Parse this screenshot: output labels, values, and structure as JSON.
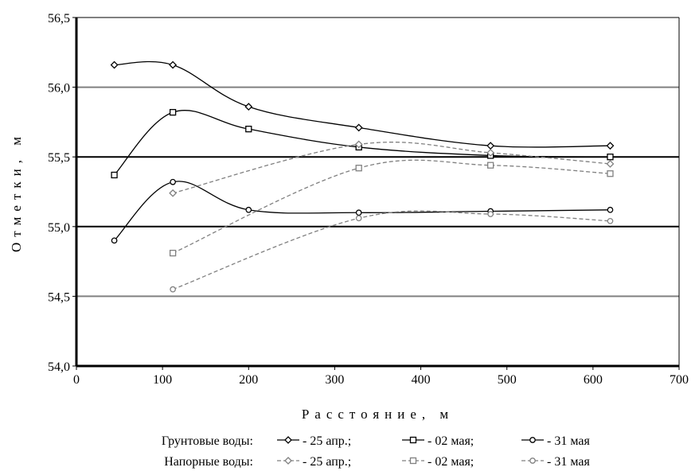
{
  "chart_data": {
    "type": "line",
    "title": "",
    "xlabel": "Расстояние, м",
    "ylabel": "Отметки, м",
    "xlim": [
      0,
      700
    ],
    "ylim": [
      54.0,
      56.5
    ],
    "xticks": [
      0,
      100,
      200,
      300,
      400,
      500,
      600,
      700
    ],
    "xtick_labels": [
      "0",
      "100",
      "200",
      "300",
      "400",
      "500",
      "600",
      "700"
    ],
    "yticks": [
      54.0,
      54.5,
      55.0,
      55.5,
      56.0,
      56.5
    ],
    "ytick_labels": [
      "54,0",
      "54,5",
      "55,0",
      "55,5",
      "56,0",
      "56,5"
    ],
    "gridlines": [
      {
        "y": 54.5,
        "color": "#808080"
      },
      {
        "y": 55.0,
        "color": "#000000"
      },
      {
        "y": 55.5,
        "color": "#000000"
      },
      {
        "y": 56.0,
        "color": "#808080"
      }
    ],
    "legend_position": "bottom",
    "legend_rows": [
      {
        "group_label": "Грунтовые воды:",
        "entries": [
          "- 25 апр.;",
          "- 02 мая;",
          "- 31 мая"
        ]
      },
      {
        "group_label": "Напорные воды:",
        "entries": [
          "- 25 апр.;",
          "- 02 мая;",
          "- 31 мая"
        ]
      }
    ],
    "series": [
      {
        "group": "Грунтовые воды",
        "name": "25 апр.",
        "style": "solid",
        "marker": "diamond",
        "color": "#000000",
        "x": [
          44,
          112,
          200,
          328,
          481,
          620
        ],
        "y": [
          56.16,
          56.16,
          55.86,
          55.71,
          55.58,
          55.58
        ]
      },
      {
        "group": "Грунтовые воды",
        "name": "02 мая",
        "style": "solid",
        "marker": "square",
        "color": "#000000",
        "x": [
          44,
          112,
          200,
          328,
          481,
          620
        ],
        "y": [
          55.37,
          55.82,
          55.7,
          55.57,
          55.51,
          55.5
        ]
      },
      {
        "group": "Грунтовые воды",
        "name": "31 мая",
        "style": "solid",
        "marker": "circle",
        "color": "#000000",
        "x": [
          44,
          112,
          200,
          328,
          481,
          620
        ],
        "y": [
          54.9,
          55.32,
          55.12,
          55.1,
          55.11,
          55.12
        ]
      },
      {
        "group": "Напорные воды",
        "name": "25 апр.",
        "style": "dashed",
        "marker": "diamond",
        "color": "#808080",
        "x": [
          112,
          328,
          481,
          620
        ],
        "y": [
          55.24,
          55.59,
          55.53,
          55.45
        ]
      },
      {
        "group": "Напорные воды",
        "name": "02 мая",
        "style": "dashed",
        "marker": "square",
        "color": "#808080",
        "x": [
          112,
          328,
          481,
          620
        ],
        "y": [
          54.81,
          55.42,
          55.44,
          55.38
        ]
      },
      {
        "group": "Напорные воды",
        "name": "31 мая",
        "style": "dashed",
        "marker": "circle",
        "color": "#808080",
        "x": [
          112,
          328,
          481,
          620
        ],
        "y": [
          54.55,
          55.06,
          55.09,
          55.04
        ]
      }
    ]
  }
}
